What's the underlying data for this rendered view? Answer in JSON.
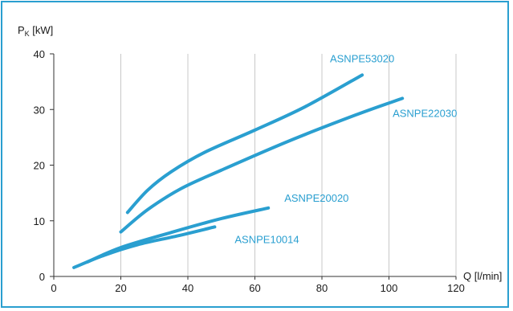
{
  "chart_data": {
    "type": "line",
    "ylabel_main": "P",
    "ylabel_sub": "K",
    "ylabel_unit": " [kW]",
    "xlabel": "Q [l/min]",
    "xlim": [
      0,
      120
    ],
    "ylim": [
      0,
      40
    ],
    "x_ticks": [
      0,
      20,
      40,
      60,
      80,
      100,
      120
    ],
    "y_ticks": [
      0,
      10,
      20,
      30,
      40
    ],
    "grid": "vertical",
    "series_color": "#2a9fd0",
    "series": [
      {
        "name": "ASNPE53020",
        "points": [
          [
            22,
            11.5
          ],
          [
            28,
            15.5
          ],
          [
            35,
            18.8
          ],
          [
            45,
            22.3
          ],
          [
            60,
            26.3
          ],
          [
            75,
            30.5
          ],
          [
            92,
            36.2
          ]
        ]
      },
      {
        "name": "ASNPE22030",
        "points": [
          [
            20,
            8
          ],
          [
            28,
            12
          ],
          [
            38,
            15.8
          ],
          [
            50,
            19.1
          ],
          [
            70,
            24.3
          ],
          [
            90,
            29
          ],
          [
            104,
            32
          ]
        ]
      },
      {
        "name": "ASNPE20020",
        "points": [
          [
            10,
            2.6
          ],
          [
            20,
            5.2
          ],
          [
            35,
            7.9
          ],
          [
            50,
            10.4
          ],
          [
            64,
            12.3
          ]
        ]
      },
      {
        "name": "ASNPE10014",
        "points": [
          [
            6,
            1.6
          ],
          [
            15,
            3.8
          ],
          [
            25,
            5.7
          ],
          [
            37,
            7.3
          ],
          [
            48,
            8.9
          ]
        ]
      }
    ]
  }
}
